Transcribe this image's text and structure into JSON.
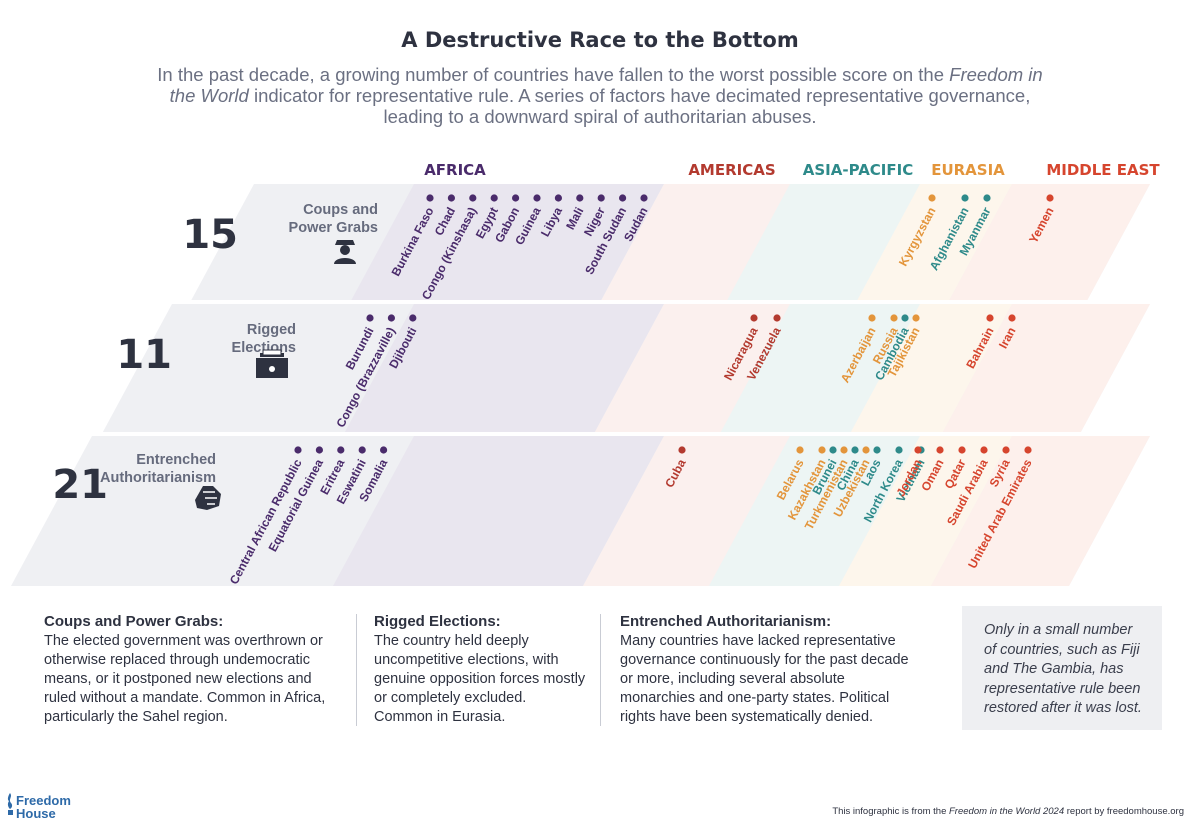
{
  "title": "A Destructive Race to the Bottom",
  "subtitle": {
    "pre": "In the past decade, a growing number of countries have fallen to the worst possible score on the ",
    "em": "Freedom in the World",
    "post": " indicator for representative rule. A series of factors have decimated representative governance, leading to a downward spiral of authoritarian abuses."
  },
  "regions": [
    {
      "name": "AFRICA",
      "color": "#4a2b6b"
    },
    {
      "name": "AMERICAS",
      "color": "#b33a2f"
    },
    {
      "name": "ASIA-PACIFIC",
      "color": "#2e8a8a"
    },
    {
      "name": "EURASIA",
      "color": "#e3953b"
    },
    {
      "name": "MIDDLE EAST",
      "color": "#d6452e"
    }
  ],
  "rows": [
    {
      "count": "15",
      "label": [
        "Coups and",
        "Power Grabs"
      ],
      "icon": "soldier-icon",
      "countries": {
        "AFRICA": [
          "Burkina Faso",
          "Chad",
          "Congo (Kinshasa)",
          "Egypt",
          "Gabon",
          "Guinea",
          "Libya",
          "Mali",
          "Niger",
          "South Sudan",
          "Sudan"
        ],
        "AMERICAS": [],
        "ASIA-PACIFIC": [
          "Afghanistan",
          "Myanmar"
        ],
        "EURASIA": [
          "Kyrgyzstan"
        ],
        "MIDDLE EAST": [
          "Yemen"
        ]
      }
    },
    {
      "count": "11",
      "label": [
        "Rigged",
        "Elections"
      ],
      "icon": "ballot-box-icon",
      "countries": {
        "AFRICA": [
          "Burundi",
          "Congo (Brazzaville)",
          "Djibouti"
        ],
        "AMERICAS": [
          "Nicaragua",
          "Venezuela"
        ],
        "ASIA-PACIFIC": [
          "Cambodia"
        ],
        "EURASIA": [
          "Azerbaijan",
          "Russia",
          "Tajikistan"
        ],
        "MIDDLE EAST": [
          "Bahrain",
          "Iran"
        ]
      }
    },
    {
      "count": "21",
      "label": [
        "Entrenched",
        "Authoritarianism"
      ],
      "icon": "fist-icon",
      "countries": {
        "AFRICA": [
          "Central African Republic",
          "Equatorial Guinea",
          "Eritrea",
          "Eswatini",
          "Somalia"
        ],
        "AMERICAS": [
          "Cuba"
        ],
        "ASIA-PACIFIC": [
          "Brunei",
          "China",
          "Laos",
          "North Korea",
          "Vietnam"
        ],
        "EURASIA": [
          "Belarus",
          "Kazakhstan",
          "Turkmenistan",
          "Uzbekistan"
        ],
        "MIDDLE EAST": [
          "Jordan",
          "Oman",
          "Qatar",
          "Saudi Arabia",
          "Syria",
          "United Arab Emirates"
        ]
      }
    }
  ],
  "definitions": [
    {
      "heading": "Coups and Power Grabs:",
      "body": "The elected government was overthrown or otherwise replaced through undemocratic means, or it postponed new elections and ruled without a mandate. Common in Africa, particularly the Sahel region."
    },
    {
      "heading": "Rigged Elections:",
      "body": "The country held deeply uncompetitive elections, with genuine opposition forces mostly or completely excluded. Common in Eurasia."
    },
    {
      "heading": "Entrenched Authoritarianism:",
      "body": "Many countries have lacked representative governance continuously for the past decade or more, including several absolute monarchies and one-party states. Political rights have been systematically denied."
    }
  ],
  "note": "Only in a small number of countries, such as Fiji and The Gambia, has representative rule been restored after it was lost.",
  "logo": {
    "line1": "Freedom",
    "line2": "House"
  },
  "credit": {
    "pre": "This infographic is from the ",
    "em": "Freedom in the World 2024",
    "post": " report by freedomhouse.org"
  }
}
